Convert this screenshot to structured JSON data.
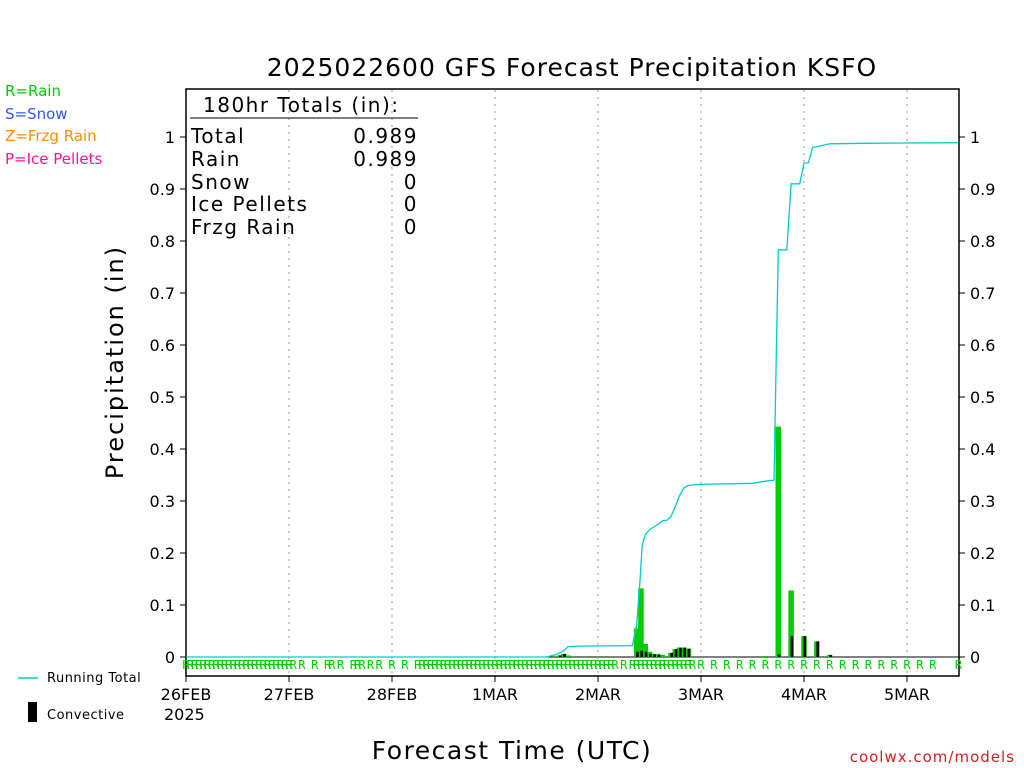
{
  "chart_data": {
    "type": "bar",
    "title": "2025022600 GFS Forecast Precipitation KSFO",
    "xlabel": "Forecast Time (UTC)",
    "ylabel": "Precipitation (in)",
    "ylim": [
      0,
      1.0
    ],
    "yticks": [
      "0",
      "0.1",
      "0.2",
      "0.3",
      "0.4",
      "0.5",
      "0.6",
      "0.7",
      "0.8",
      "0.9",
      "1"
    ],
    "xlim_hours": [
      0,
      180
    ],
    "xticks": [
      {
        "label": "26FEB",
        "hour": 0
      },
      {
        "label": "27FEB",
        "hour": 24
      },
      {
        "label": "28FEB",
        "hour": 48
      },
      {
        "label": "1MAR",
        "hour": 72
      },
      {
        "label": "2MAR",
        "hour": 96
      },
      {
        "label": "3MAR",
        "hour": 120
      },
      {
        "label": "4MAR",
        "hour": 144
      },
      {
        "label": "5MAR",
        "hour": 168
      }
    ],
    "year_label": "2025",
    "grid": "vertical-dotted",
    "legend_types": [
      {
        "label": "R=Rain",
        "color": "#00cc00"
      },
      {
        "label": "S=Snow",
        "color": "#3355ff"
      },
      {
        "label": "Z=Frzg Rain",
        "color": "#ff8c00"
      },
      {
        "label": "P=Ice Pellets",
        "color": "#ff1493"
      }
    ],
    "legend_running": {
      "label": "Running Total",
      "color": "#00cccc"
    },
    "legend_convective": {
      "label": "Convective",
      "color": "#000000"
    },
    "totals": {
      "header": "180hr Totals (in):",
      "rows": [
        {
          "label": "Total",
          "value": "0.989"
        },
        {
          "label": "Rain",
          "value": "0.989"
        },
        {
          "label": "Snow",
          "value": "0"
        },
        {
          "label": "Ice Pellets",
          "value": "0"
        },
        {
          "label": "Frzg Rain",
          "value": "0"
        }
      ]
    },
    "series": [
      {
        "name": "Rain",
        "color": "#00cc00",
        "points": [
          {
            "hour": 87,
            "value": 0.003
          },
          {
            "hour": 88,
            "value": 0.006
          },
          {
            "hour": 89,
            "value": 0.003
          },
          {
            "hour": 105,
            "value": 0.055
          },
          {
            "hour": 106,
            "value": 0.132
          },
          {
            "hour": 107,
            "value": 0.025
          },
          {
            "hour": 108,
            "value": 0.01
          },
          {
            "hour": 109,
            "value": 0.006
          },
          {
            "hour": 110,
            "value": 0.005
          },
          {
            "hour": 111,
            "value": 0.004
          },
          {
            "hour": 113,
            "value": 0.008
          },
          {
            "hour": 114,
            "value": 0.015
          },
          {
            "hour": 115,
            "value": 0.018
          },
          {
            "hour": 116,
            "value": 0.018
          },
          {
            "hour": 117,
            "value": 0.016
          },
          {
            "hour": 135,
            "value": 0.002
          },
          {
            "hour": 138,
            "value": 0.443
          },
          {
            "hour": 141,
            "value": 0.128
          },
          {
            "hour": 144,
            "value": 0.04
          },
          {
            "hour": 147,
            "value": 0.03
          },
          {
            "hour": 150,
            "value": 0.004
          }
        ]
      },
      {
        "name": "Convective",
        "color": "#000000",
        "points": [
          {
            "hour": 87,
            "value": 0.003
          },
          {
            "hour": 88,
            "value": 0.006
          },
          {
            "hour": 105,
            "value": 0.01
          },
          {
            "hour": 106,
            "value": 0.012
          },
          {
            "hour": 107,
            "value": 0.01
          },
          {
            "hour": 108,
            "value": 0.006
          },
          {
            "hour": 109,
            "value": 0.005
          },
          {
            "hour": 110,
            "value": 0.005
          },
          {
            "hour": 113,
            "value": 0.008
          },
          {
            "hour": 114,
            "value": 0.015
          },
          {
            "hour": 115,
            "value": 0.018
          },
          {
            "hour": 116,
            "value": 0.018
          },
          {
            "hour": 117,
            "value": 0.016
          },
          {
            "hour": 138,
            "value": 0.005
          },
          {
            "hour": 141,
            "value": 0.04
          },
          {
            "hour": 144,
            "value": 0.04
          },
          {
            "hour": 147,
            "value": 0.03
          },
          {
            "hour": 150,
            "value": 0.004
          }
        ]
      },
      {
        "name": "Running Total",
        "color": "#00cccc",
        "points": [
          {
            "hour": 0,
            "value": 0
          },
          {
            "hour": 84,
            "value": 0
          },
          {
            "hour": 86,
            "value": 0.004
          },
          {
            "hour": 88,
            "value": 0.012
          },
          {
            "hour": 89,
            "value": 0.02
          },
          {
            "hour": 92,
            "value": 0.021
          },
          {
            "hour": 104,
            "value": 0.022
          },
          {
            "hour": 105,
            "value": 0.06
          },
          {
            "hour": 105.8,
            "value": 0.15
          },
          {
            "hour": 106.3,
            "value": 0.215
          },
          {
            "hour": 107,
            "value": 0.235
          },
          {
            "hour": 108,
            "value": 0.245
          },
          {
            "hour": 110,
            "value": 0.255
          },
          {
            "hour": 111,
            "value": 0.262
          },
          {
            "hour": 112,
            "value": 0.263
          },
          {
            "hour": 113,
            "value": 0.27
          },
          {
            "hour": 114,
            "value": 0.29
          },
          {
            "hour": 115,
            "value": 0.31
          },
          {
            "hour": 116,
            "value": 0.325
          },
          {
            "hour": 117,
            "value": 0.33
          },
          {
            "hour": 120,
            "value": 0.332
          },
          {
            "hour": 132,
            "value": 0.334
          },
          {
            "hour": 135,
            "value": 0.338
          },
          {
            "hour": 137,
            "value": 0.34
          },
          {
            "hour": 137.5,
            "value": 0.56
          },
          {
            "hour": 138,
            "value": 0.783
          },
          {
            "hour": 140,
            "value": 0.783
          },
          {
            "hour": 141,
            "value": 0.91
          },
          {
            "hour": 143,
            "value": 0.91
          },
          {
            "hour": 144,
            "value": 0.95
          },
          {
            "hour": 145,
            "value": 0.95
          },
          {
            "hour": 146,
            "value": 0.98
          },
          {
            "hour": 148,
            "value": 0.983
          },
          {
            "hour": 150,
            "value": 0.987
          },
          {
            "hour": 160,
            "value": 0.988
          },
          {
            "hour": 180,
            "value": 0.989
          }
        ]
      }
    ],
    "type_codes_label": "R",
    "type_code_hours": [
      0,
      1,
      2,
      3,
      4,
      5,
      6,
      7,
      8,
      9,
      10,
      11,
      12,
      13,
      14,
      15,
      16,
      17,
      18,
      19,
      20,
      21,
      22,
      23,
      24,
      25,
      27,
      30,
      33,
      34,
      36,
      39,
      40,
      41,
      43,
      45,
      48,
      51,
      54,
      55,
      56,
      57,
      58,
      59,
      60,
      61,
      62,
      63,
      64,
      65,
      66,
      67,
      68,
      69,
      70,
      71,
      72,
      73,
      74,
      75,
      76,
      77,
      78,
      79,
      80,
      81,
      82,
      83,
      84,
      85,
      86,
      87,
      88,
      89,
      90,
      91,
      92,
      93,
      94,
      95,
      96,
      97,
      98,
      99,
      100,
      102,
      104,
      105,
      106,
      107,
      108,
      109,
      110,
      111,
      112,
      113,
      114,
      115,
      116,
      117,
      118,
      120,
      123,
      126,
      129,
      132,
      135,
      138,
      141,
      144,
      147,
      150,
      153,
      156,
      159,
      162,
      165,
      168,
      171,
      174,
      180
    ]
  },
  "watermark": "coolwx.com/models"
}
